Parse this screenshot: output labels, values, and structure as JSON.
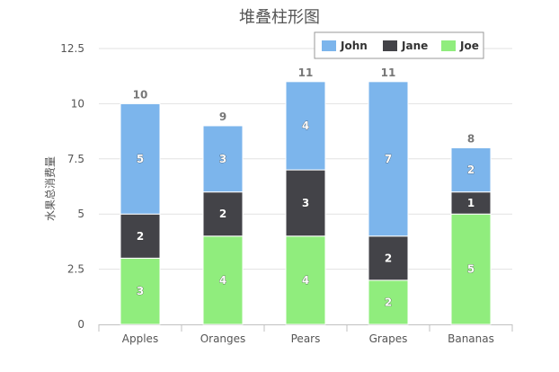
{
  "chart_data": {
    "type": "bar",
    "stacked": true,
    "title": "堆叠柱形图",
    "xlabel": "",
    "ylabel": "水果总消费量",
    "categories": [
      "Apples",
      "Oranges",
      "Pears",
      "Grapes",
      "Bananas"
    ],
    "ylim": [
      0,
      12.5
    ],
    "yticks": [
      "0",
      "2.5",
      "5",
      "7.5",
      "10",
      "12.5"
    ],
    "grid": true,
    "legend_position": "top-right",
    "series": [
      {
        "name": "John",
        "color": "#7cb5ec",
        "values": [
          5,
          3,
          4,
          7,
          2
        ]
      },
      {
        "name": "Jane",
        "color": "#434348",
        "values": [
          2,
          2,
          3,
          2,
          1
        ]
      },
      {
        "name": "Joe",
        "color": "#90ed7d",
        "values": [
          3,
          4,
          4,
          2,
          5
        ]
      }
    ],
    "totals": [
      10,
      9,
      11,
      11,
      8
    ]
  }
}
